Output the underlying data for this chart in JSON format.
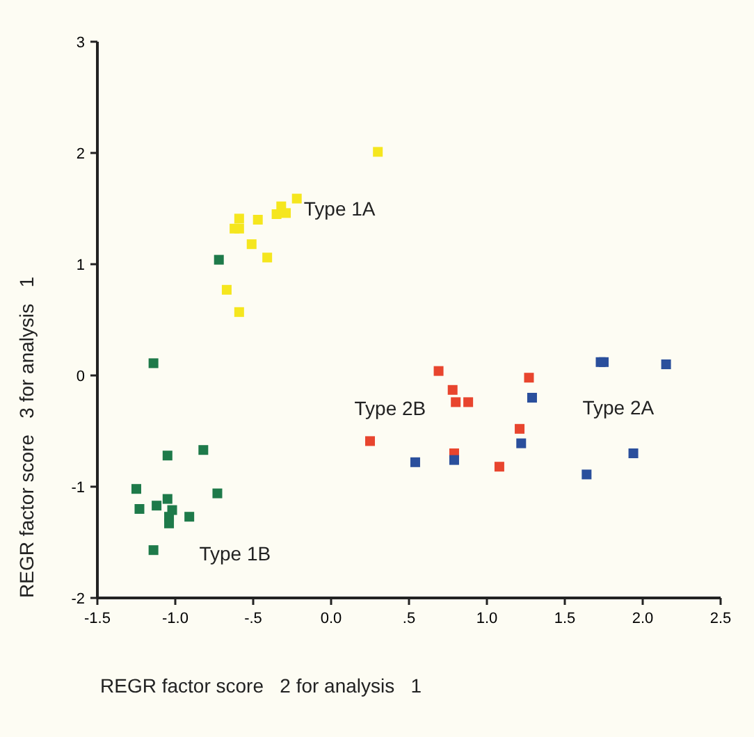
{
  "chart_data": {
    "type": "scatter",
    "xlabel": "REGR factor score   2 for analysis   1",
    "ylabel": "REGR factor score   3 for analysis   1",
    "xlim": [
      -1.5,
      2.5
    ],
    "ylim": [
      -2,
      3
    ],
    "xticks": [
      {
        "value": -1.5,
        "label": "-1.5"
      },
      {
        "value": -1,
        "label": "-1.0"
      },
      {
        "value": -0.5,
        "label": "-.5"
      },
      {
        "value": 0,
        "label": "0.0"
      },
      {
        "value": 0.5,
        "label": ".5"
      },
      {
        "value": 1,
        "label": "1.0"
      },
      {
        "value": 1.5,
        "label": "1.5"
      },
      {
        "value": 2,
        "label": "2.0"
      },
      {
        "value": 2.5,
        "label": "2.5"
      }
    ],
    "yticks": [
      -2,
      -1,
      0,
      1,
      2,
      3
    ],
    "grid": false,
    "legend": false,
    "marker": "square",
    "series": [
      {
        "name": "Type 1A",
        "color": "#f5e61e",
        "x": [
          0.3,
          -0.22,
          -0.32,
          -0.29,
          -0.35,
          -0.59,
          -0.47,
          -0.59,
          -0.62,
          -0.51,
          -0.41,
          -0.67,
          -0.59
        ],
        "values": [
          2.01,
          1.59,
          1.52,
          1.46,
          1.45,
          1.41,
          1.4,
          1.32,
          1.32,
          1.18,
          1.06,
          0.77,
          0.57
        ]
      },
      {
        "name": "Type 1B",
        "color": "#1e7a4a",
        "x": [
          -0.72,
          -1.14,
          -0.82,
          -1.05,
          -1.25,
          -0.73,
          -1.05,
          -1.12,
          -1.23,
          -1.02,
          -0.91,
          -1.04,
          -1.04,
          -1.14
        ],
        "values": [
          1.04,
          0.11,
          -0.67,
          -0.72,
          -1.02,
          -1.06,
          -1.11,
          -1.17,
          -1.2,
          -1.21,
          -1.27,
          -1.27,
          -1.33,
          -1.57
        ]
      },
      {
        "name": "Type 2B",
        "color": "#e8452e",
        "x": [
          0.69,
          1.27,
          0.78,
          0.8,
          0.88,
          1.21,
          0.25,
          0.79,
          1.08
        ],
        "values": [
          0.04,
          -0.02,
          -0.13,
          -0.24,
          -0.24,
          -0.48,
          -0.59,
          -0.7,
          -0.82
        ]
      },
      {
        "name": "Type 2A",
        "color": "#2a4f9c",
        "x": [
          1.75,
          1.73,
          2.15,
          1.29,
          1.22,
          1.94,
          0.79,
          0.54,
          1.64
        ],
        "values": [
          0.12,
          0.12,
          0.1,
          -0.2,
          -0.61,
          -0.7,
          -0.76,
          -0.78,
          -0.89
        ]
      }
    ]
  }
}
